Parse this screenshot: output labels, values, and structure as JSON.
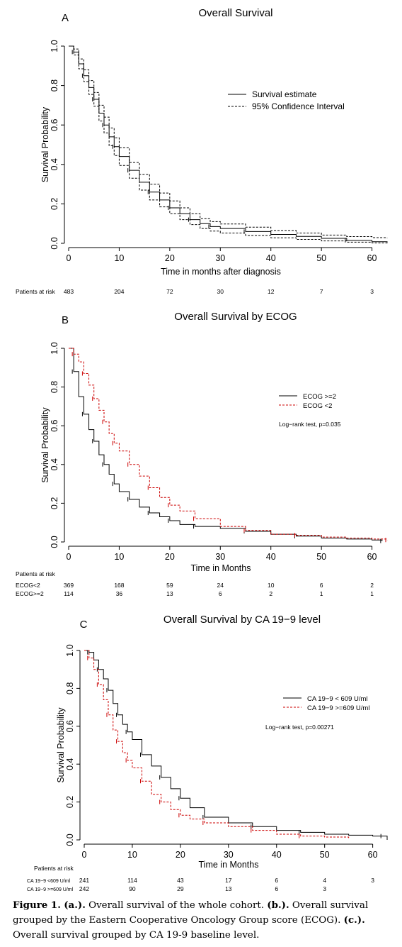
{
  "chart_data": [
    {
      "type": "line",
      "panel_letter": "A",
      "title": "Overall Survival",
      "xlabel": "Time in months after diagnosis",
      "ylabel": "Survival Probability",
      "xlim": [
        0,
        63
      ],
      "ylim": [
        0,
        1
      ],
      "xticks": [
        0,
        10,
        20,
        30,
        40,
        50,
        60
      ],
      "yticks": [
        "0.0",
        "0.2",
        "0.4",
        "0.6",
        "0.8",
        "1.0"
      ],
      "legend_position": "top-right",
      "annotation": "",
      "series": [
        {
          "name": "Survival estimate",
          "color": "#000000",
          "dashed": false,
          "x": [
            0,
            1,
            2,
            3,
            4,
            5,
            6,
            7,
            8,
            9,
            10,
            12,
            14,
            16,
            18,
            20,
            22,
            24,
            26,
            28,
            30,
            35,
            40,
            45,
            50,
            55,
            60,
            63
          ],
          "y": [
            1.0,
            0.97,
            0.91,
            0.85,
            0.79,
            0.73,
            0.66,
            0.6,
            0.54,
            0.49,
            0.44,
            0.37,
            0.31,
            0.26,
            0.22,
            0.18,
            0.15,
            0.12,
            0.1,
            0.085,
            0.075,
            0.06,
            0.045,
            0.035,
            0.025,
            0.015,
            0.008,
            0.005
          ]
        },
        {
          "name": "95% Confidence Interval",
          "color": "#000000",
          "dashed": true,
          "x": [
            0,
            1,
            2,
            3,
            4,
            5,
            6,
            7,
            8,
            9,
            10,
            12,
            14,
            16,
            18,
            20,
            22,
            24,
            26,
            28,
            30,
            35,
            40,
            45,
            50,
            55,
            60,
            63
          ],
          "y": [
            1.0,
            0.985,
            0.935,
            0.88,
            0.825,
            0.765,
            0.7,
            0.64,
            0.585,
            0.535,
            0.485,
            0.41,
            0.35,
            0.3,
            0.255,
            0.215,
            0.18,
            0.15,
            0.125,
            0.11,
            0.098,
            0.082,
            0.065,
            0.052,
            0.042,
            0.034,
            0.029,
            0.027
          ]
        },
        {
          "name": "",
          "color": "#000000",
          "dashed": true,
          "x": [
            0,
            1,
            2,
            3,
            4,
            5,
            6,
            7,
            8,
            9,
            10,
            12,
            14,
            16,
            18,
            20,
            22,
            24,
            26,
            28,
            30,
            35,
            40,
            45,
            50,
            55,
            60,
            63
          ],
          "y": [
            1.0,
            0.955,
            0.885,
            0.82,
            0.755,
            0.695,
            0.62,
            0.56,
            0.495,
            0.445,
            0.395,
            0.33,
            0.27,
            0.22,
            0.185,
            0.15,
            0.12,
            0.095,
            0.075,
            0.062,
            0.052,
            0.04,
            0.028,
            0.02,
            0.012,
            0.006,
            0.002,
            0.0
          ]
        }
      ],
      "risk_table": {
        "title": "Patients at risk",
        "rows": [
          {
            "label": "",
            "values": [
              "483",
              "204",
              "72",
              "30",
              "12",
              "7",
              "3"
            ]
          }
        ]
      }
    },
    {
      "type": "line",
      "panel_letter": "B",
      "title": "Overall Survival by ECOG",
      "xlabel": "Time in Months",
      "ylabel": "Survival Probability",
      "xlim": [
        0,
        63
      ],
      "ylim": [
        0,
        1
      ],
      "xticks": [
        0,
        10,
        20,
        30,
        40,
        50,
        60
      ],
      "yticks": [
        "0.0",
        "0.2",
        "0.4",
        "0.6",
        "0.8",
        "1.0"
      ],
      "legend_position": "top-right",
      "annotation": "Log−rank test, p=0.035",
      "series": [
        {
          "name": "ECOG >=2",
          "color": "#000000",
          "dashed": false,
          "x": [
            0,
            1,
            2,
            3,
            4,
            5,
            6,
            7,
            8,
            9,
            10,
            12,
            14,
            16,
            18,
            20,
            22,
            25,
            30,
            35,
            40,
            45,
            50,
            55,
            60,
            62
          ],
          "y": [
            1.0,
            0.88,
            0.75,
            0.66,
            0.58,
            0.52,
            0.45,
            0.4,
            0.35,
            0.3,
            0.26,
            0.22,
            0.18,
            0.15,
            0.13,
            0.11,
            0.09,
            0.08,
            0.07,
            0.055,
            0.04,
            0.03,
            0.02,
            0.015,
            0.01,
            0.005
          ]
        },
        {
          "name": "ECOG <2",
          "color": "#cc0000",
          "dashed": true,
          "x": [
            0,
            1,
            2,
            3,
            4,
            5,
            6,
            7,
            8,
            9,
            10,
            12,
            14,
            16,
            18,
            20,
            22,
            25,
            30,
            35,
            40,
            45,
            50,
            55,
            60,
            63
          ],
          "y": [
            1.0,
            0.97,
            0.93,
            0.87,
            0.81,
            0.74,
            0.68,
            0.62,
            0.56,
            0.51,
            0.47,
            0.4,
            0.34,
            0.28,
            0.23,
            0.19,
            0.16,
            0.12,
            0.08,
            0.06,
            0.04,
            0.035,
            0.025,
            0.02,
            0.015,
            0.01
          ]
        }
      ],
      "risk_table": {
        "title": "Patients at risk",
        "rows": [
          {
            "label": "ECOG<2",
            "values": [
              "369",
              "168",
              "59",
              "24",
              "10",
              "6",
              "2"
            ]
          },
          {
            "label": "ECOG>=2",
            "values": [
              "114",
              "36",
              "13",
              "6",
              "2",
              "1",
              "1"
            ]
          }
        ]
      }
    },
    {
      "type": "line",
      "panel_letter": "C",
      "title": "Overall Survival by CA 19−9 level",
      "xlabel": "Time in Months",
      "ylabel": "Survival Probability",
      "xlim": [
        0,
        63
      ],
      "ylim": [
        0,
        1
      ],
      "xticks": [
        0,
        10,
        20,
        30,
        40,
        50,
        60
      ],
      "yticks": [
        "0.0",
        "0.2",
        "0.4",
        "0.6",
        "0.8",
        "1.0"
      ],
      "legend_position": "top-right",
      "annotation": "Log−rank test, p=0.00271",
      "series": [
        {
          "name": "CA 19−9 < 609 U/ml",
          "color": "#000000",
          "dashed": false,
          "x": [
            0,
            1,
            2,
            3,
            4,
            5,
            6,
            7,
            8,
            9,
            10,
            12,
            14,
            16,
            18,
            20,
            22,
            25,
            30,
            35,
            40,
            45,
            50,
            55,
            60,
            62,
            63
          ],
          "y": [
            1.0,
            0.99,
            0.95,
            0.9,
            0.85,
            0.79,
            0.72,
            0.66,
            0.61,
            0.57,
            0.53,
            0.45,
            0.39,
            0.33,
            0.27,
            0.22,
            0.17,
            0.12,
            0.09,
            0.07,
            0.05,
            0.04,
            0.03,
            0.025,
            0.02,
            0.02,
            0.0
          ]
        },
        {
          "name": "CA 19−9 >=609 U/ml",
          "color": "#cc0000",
          "dashed": true,
          "x": [
            0,
            1,
            2,
            3,
            4,
            5,
            6,
            7,
            8,
            9,
            10,
            12,
            14,
            16,
            18,
            20,
            22,
            25,
            30,
            35,
            40,
            45,
            50,
            55
          ],
          "y": [
            1.0,
            0.96,
            0.9,
            0.82,
            0.74,
            0.66,
            0.58,
            0.52,
            0.46,
            0.42,
            0.38,
            0.31,
            0.24,
            0.2,
            0.16,
            0.13,
            0.11,
            0.09,
            0.07,
            0.05,
            0.03,
            0.02,
            0.015,
            0.01
          ]
        }
      ],
      "risk_table": {
        "title": "Patients at risk",
        "rows": [
          {
            "label": "CA 19−9 <609 U/ml",
            "values": [
              "241",
              "114",
              "43",
              "17",
              "6",
              "4",
              "3"
            ]
          },
          {
            "label": "CA 19−9 >=609 U/ml",
            "values": [
              "242",
              "90",
              "29",
              "13",
              "6",
              "3",
              ""
            ]
          }
        ]
      }
    }
  ],
  "caption": {
    "figure_label": "Figure 1.",
    "a_label": "(a.).",
    "a_text": "Overall survival of the whole cohort.",
    "b_label": "(b.).",
    "b_text": "Overall survival grouped by the Eastern Cooperative Oncology Group score (ECOG).",
    "c_label": "(c.).",
    "c_text": "Overall survival grouped by CA 19-9 baseline level."
  }
}
